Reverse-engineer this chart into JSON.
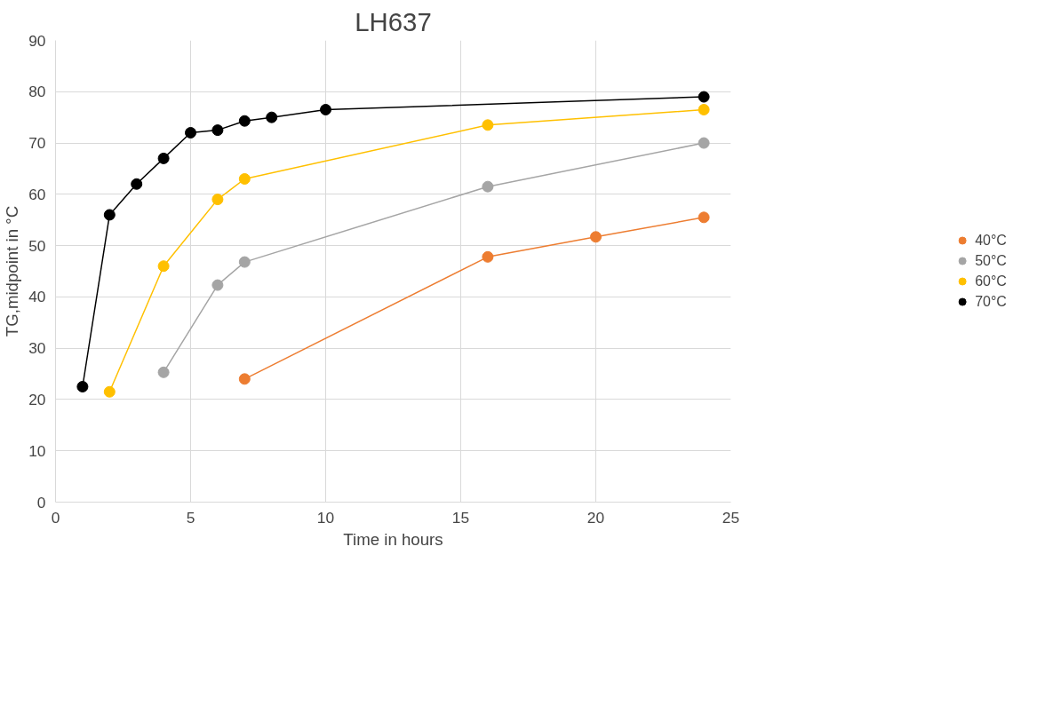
{
  "chart_data": {
    "type": "line",
    "title": "LH637",
    "xlabel": "Time in hours",
    "ylabel": "TG,midpoint in °C",
    "xlim": [
      0,
      25
    ],
    "xticks": [
      0,
      5,
      10,
      15,
      20,
      25
    ],
    "ylim": [
      0,
      90
    ],
    "yticks": [
      0,
      10,
      20,
      30,
      40,
      50,
      60,
      70,
      80,
      90
    ],
    "grid": true,
    "legend": "right",
    "marker": "circle",
    "line_style": "solid",
    "series": [
      {
        "name": "40°C",
        "color": "#ed7d31",
        "x": [
          7,
          16,
          20,
          24
        ],
        "values": [
          24,
          47.8,
          51.7,
          55.5
        ]
      },
      {
        "name": "50°C",
        "color": "#a5a5a5",
        "x": [
          4,
          6,
          7,
          16,
          24
        ],
        "values": [
          25.3,
          42.3,
          46.8,
          61.5,
          70
        ]
      },
      {
        "name": "60°C",
        "color": "#ffc000",
        "x": [
          2,
          4,
          6,
          7,
          16,
          24
        ],
        "values": [
          21.5,
          46,
          59,
          63,
          73.5,
          76.5
        ]
      },
      {
        "name": "70°C",
        "color": "#000000",
        "x": [
          1,
          2,
          3,
          4,
          5,
          6,
          7,
          8,
          10,
          24
        ],
        "values": [
          22.5,
          56,
          62,
          67,
          72,
          72.5,
          74.3,
          75,
          76.5,
          79
        ]
      }
    ]
  }
}
